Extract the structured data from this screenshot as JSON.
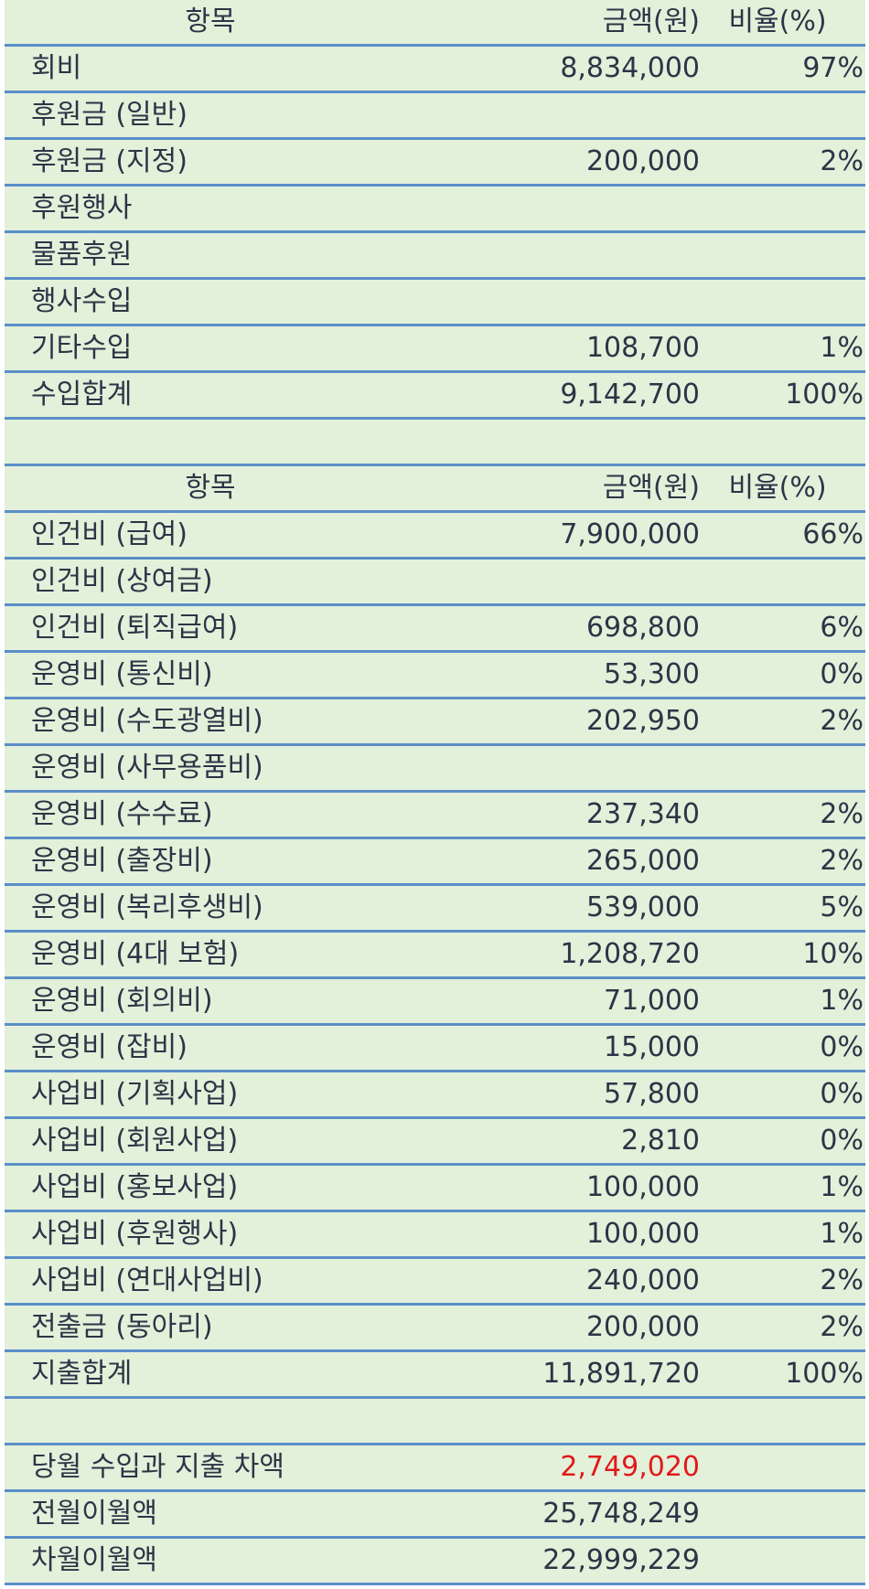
{
  "income": {
    "header": {
      "item": "항목",
      "amount": "금액(원)",
      "ratio": "비율(%)"
    },
    "rows": [
      {
        "item": "회비",
        "amount": "8,834,000",
        "ratio": "97%"
      },
      {
        "item": "후원금 (일반)",
        "amount": "",
        "ratio": ""
      },
      {
        "item": "후원금 (지정)",
        "amount": "200,000",
        "ratio": "2%"
      },
      {
        "item": "후원행사",
        "amount": "",
        "ratio": ""
      },
      {
        "item": "물품후원",
        "amount": "",
        "ratio": ""
      },
      {
        "item": "행사수입",
        "amount": "",
        "ratio": ""
      },
      {
        "item": "기타수입",
        "amount": "108,700",
        "ratio": "1%"
      },
      {
        "item": "수입합계",
        "amount": "9,142,700",
        "ratio": "100%"
      }
    ]
  },
  "expense": {
    "header": {
      "item": "항목",
      "amount": "금액(원)",
      "ratio": "비율(%)"
    },
    "rows": [
      {
        "item": "인건비 (급여)",
        "amount": "7,900,000",
        "ratio": "66%"
      },
      {
        "item": "인건비 (상여금)",
        "amount": "",
        "ratio": ""
      },
      {
        "item": "인건비 (퇴직급여)",
        "amount": "698,800",
        "ratio": "6%"
      },
      {
        "item": "운영비 (통신비)",
        "amount": "53,300",
        "ratio": "0%"
      },
      {
        "item": "운영비 (수도광열비)",
        "amount": "202,950",
        "ratio": "2%"
      },
      {
        "item": "운영비 (사무용품비)",
        "amount": "",
        "ratio": ""
      },
      {
        "item": "운영비 (수수료)",
        "amount": "237,340",
        "ratio": "2%"
      },
      {
        "item": "운영비 (출장비)",
        "amount": "265,000",
        "ratio": "2%"
      },
      {
        "item": "운영비 (복리후생비)",
        "amount": "539,000",
        "ratio": "5%"
      },
      {
        "item": "운영비 (4대 보험)",
        "amount": "1,208,720",
        "ratio": "10%"
      },
      {
        "item": "운영비 (회의비)",
        "amount": "71,000",
        "ratio": "1%"
      },
      {
        "item": "운영비 (잡비)",
        "amount": "15,000",
        "ratio": "0%"
      },
      {
        "item": "사업비 (기획사업)",
        "amount": "57,800",
        "ratio": "0%"
      },
      {
        "item": "사업비 (회원사업)",
        "amount": "2,810",
        "ratio": "0%"
      },
      {
        "item": "사업비 (홍보사업)",
        "amount": "100,000",
        "ratio": "1%"
      },
      {
        "item": "사업비 (후원행사)",
        "amount": "100,000",
        "ratio": "1%"
      },
      {
        "item": "사업비 (연대사업비)",
        "amount": "240,000",
        "ratio": "2%"
      },
      {
        "item": "전출금 (동아리)",
        "amount": "200,000",
        "ratio": "2%"
      },
      {
        "item": "지출합계",
        "amount": "11,891,720",
        "ratio": "100%"
      }
    ]
  },
  "summary": {
    "rows": [
      {
        "item": "당월 수입과 지출 차액",
        "amount": "2,749,020",
        "ratio": ""
      },
      {
        "item": "전월이월액",
        "amount": "25,748,249",
        "ratio": ""
      },
      {
        "item": "차월이월액",
        "amount": "22,999,229",
        "ratio": ""
      }
    ]
  },
  "colors": {
    "background": "#e3f0da",
    "rule": "#5b8ec9",
    "text": "#2b3546",
    "negative": "#e11a1a"
  }
}
